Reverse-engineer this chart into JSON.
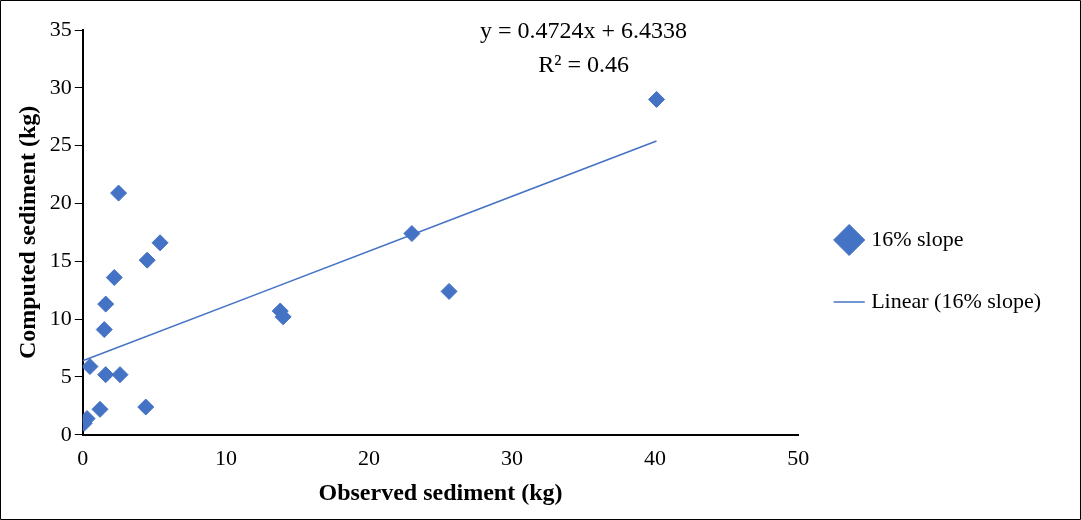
{
  "chart_data": {
    "type": "scatter",
    "xlabel": "Observed sediment (kg)",
    "ylabel": "Computed sediment (kg)",
    "xlim": [
      0,
      50
    ],
    "xticks": [
      0,
      10,
      20,
      30,
      40,
      50
    ],
    "ylim": [
      0,
      35
    ],
    "yticks": [
      0,
      5,
      10,
      15,
      20,
      25,
      30,
      35
    ],
    "series": [
      {
        "name": "16% slope",
        "marker": "diamond",
        "color": "#4472c4",
        "x": [
          40.1,
          23.0,
          25.6,
          13.8,
          14.0,
          2.5,
          5.4,
          4.5,
          2.2,
          1.6,
          1.5,
          0.5,
          1.6,
          2.6,
          1.2,
          4.4,
          0.3,
          0.1
        ],
        "values": [
          29.0,
          17.4,
          12.4,
          10.7,
          10.2,
          20.9,
          16.6,
          15.1,
          13.6,
          11.3,
          9.1,
          5.9,
          5.2,
          5.2,
          2.2,
          2.4,
          1.4,
          1.0
        ]
      },
      {
        "name": "Linear (16% slope)",
        "type": "line",
        "marker": "none",
        "color": "#4472c4",
        "x": [
          0,
          40.1
        ],
        "values": [
          6.4,
          25.4
        ]
      }
    ],
    "annotations": [
      "y = 0.4724x + 6.4338",
      "R² = 0.46"
    ],
    "grid": false,
    "legend": "right"
  }
}
